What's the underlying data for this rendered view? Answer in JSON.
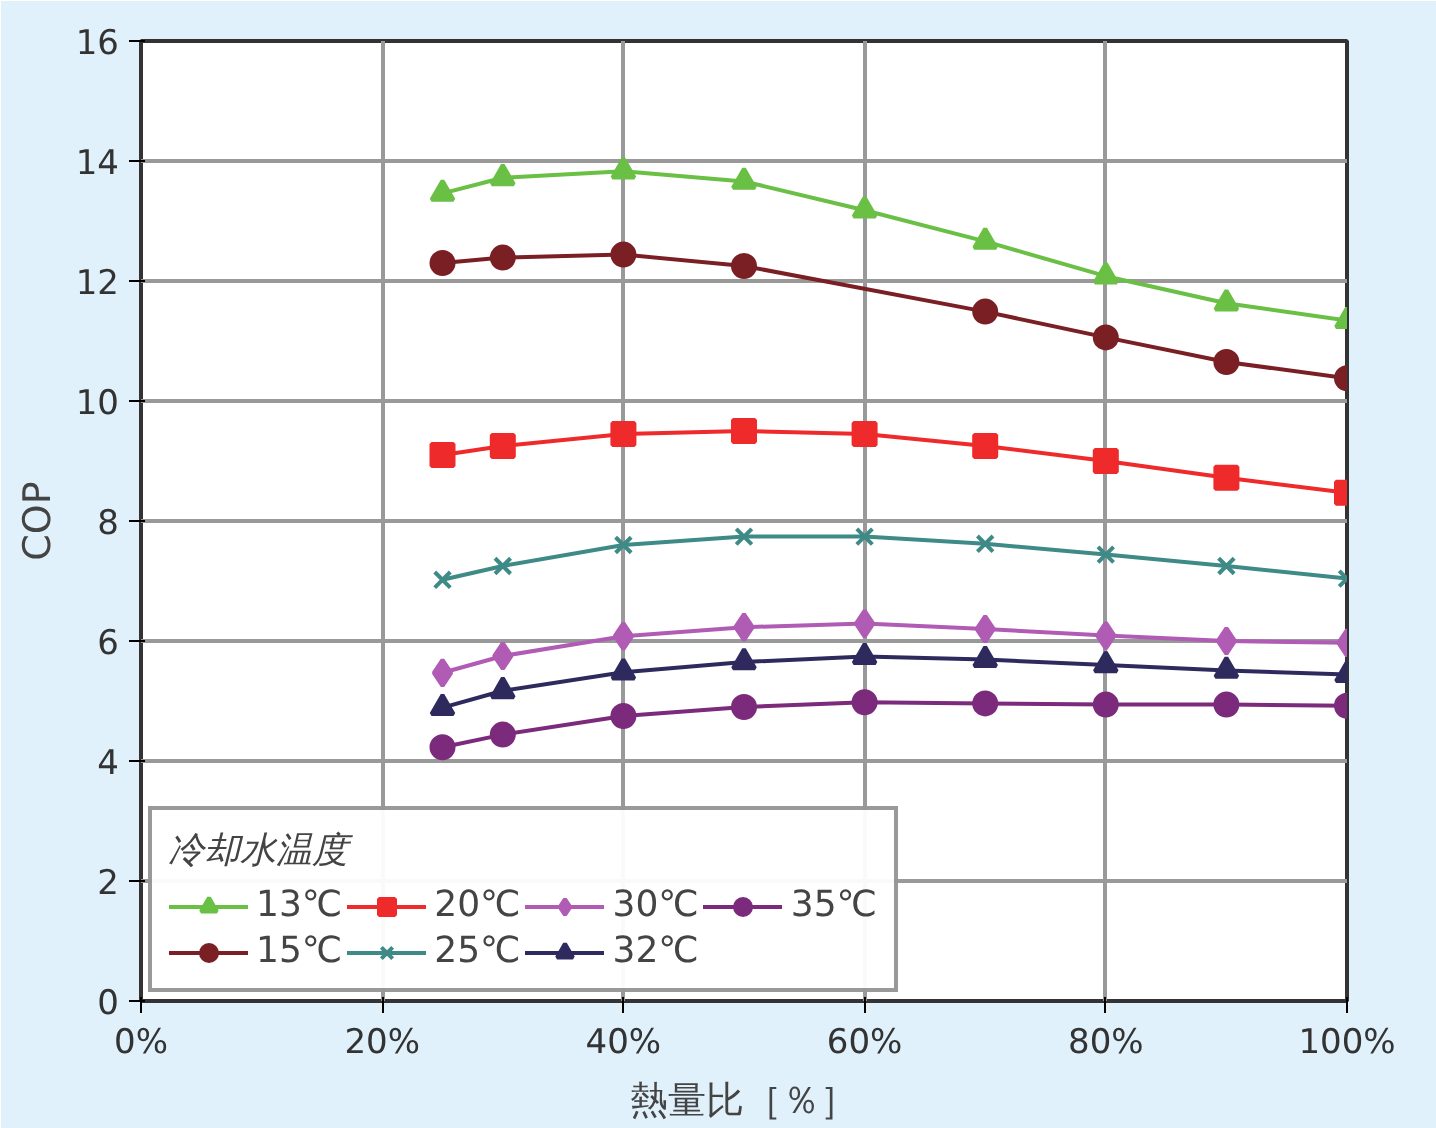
{
  "chart_data": {
    "type": "line",
    "xlabel": "熱量比［％］",
    "ylabel": "COP",
    "legend_title": "冷却水温度",
    "legend": "bottom left",
    "grid": true,
    "x": [
      25,
      30,
      40,
      50,
      60,
      70,
      80,
      90,
      100
    ],
    "xlim": [
      0,
      100
    ],
    "xticks": [
      {
        "value": 0,
        "label": "0%"
      },
      {
        "value": 20,
        "label": "20%"
      },
      {
        "value": 40,
        "label": "40%"
      },
      {
        "value": 60,
        "label": "60%"
      },
      {
        "value": 80,
        "label": "80%"
      },
      {
        "value": 100,
        "label": "100%"
      }
    ],
    "ylim": [
      0,
      16
    ],
    "yticks": [
      0,
      2,
      4,
      6,
      8,
      10,
      12,
      14,
      16
    ],
    "series": [
      {
        "name": "13℃",
        "color": "#6abf45",
        "marker": "triangle",
        "values": [
          13.46,
          13.72,
          13.83,
          13.66,
          13.18,
          12.66,
          12.08,
          11.63,
          11.34
        ]
      },
      {
        "name": "15℃",
        "color": "#7a1f24",
        "marker": "circle",
        "x": [
          25,
          30,
          40,
          50,
          70,
          80,
          90,
          100
        ],
        "values": [
          12.3,
          12.39,
          12.44,
          12.25,
          11.49,
          11.06,
          10.65,
          10.38
        ]
      },
      {
        "name": "20℃",
        "color": "#ee2a2a",
        "marker": "square",
        "values": [
          9.1,
          9.25,
          9.45,
          9.5,
          9.45,
          9.25,
          9.0,
          8.72,
          8.47
        ]
      },
      {
        "name": "25℃",
        "color": "#3e8a87",
        "marker": "cross",
        "values": [
          7.02,
          7.25,
          7.6,
          7.74,
          7.74,
          7.62,
          7.44,
          7.25,
          7.04
        ]
      },
      {
        "name": "30℃",
        "color": "#b05cb5",
        "marker": "diamond",
        "values": [
          5.47,
          5.75,
          6.08,
          6.23,
          6.29,
          6.2,
          6.09,
          6.0,
          5.97
        ]
      },
      {
        "name": "32℃",
        "color": "#2e2a5e",
        "marker": "triangle",
        "values": [
          4.89,
          5.17,
          5.48,
          5.65,
          5.74,
          5.69,
          5.6,
          5.51,
          5.44
        ]
      },
      {
        "name": "35℃",
        "color": "#7b2a7c",
        "marker": "circle",
        "values": [
          4.23,
          4.44,
          4.75,
          4.9,
          4.98,
          4.96,
          4.94,
          4.94,
          4.92
        ]
      }
    ]
  }
}
